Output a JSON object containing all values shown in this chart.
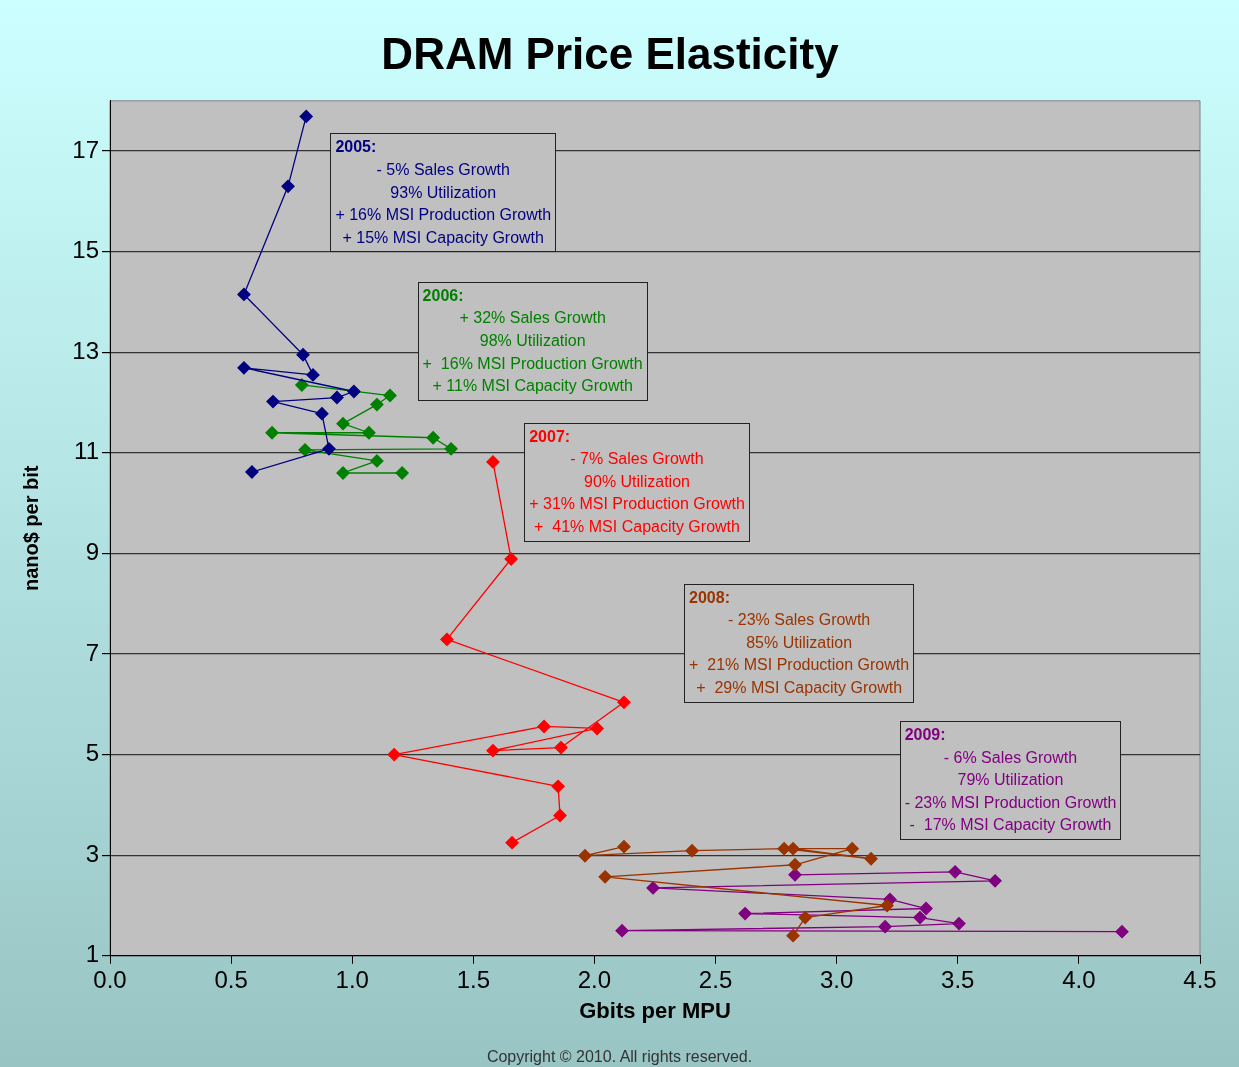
{
  "chart_data": {
    "type": "line",
    "title": "DRAM Price Elasticity",
    "xlabel": "Gbits per MPU",
    "ylabel": "nano$ per bit",
    "xlim": [
      0,
      4.5
    ],
    "xticks": [
      {
        "value": 0,
        "label": "0.0"
      },
      {
        "value": 0.5,
        "label": "0.5"
      },
      {
        "value": 1,
        "label": "1.0"
      },
      {
        "value": 1.5,
        "label": "1.5"
      },
      {
        "value": 2,
        "label": "2.0"
      },
      {
        "value": 2.5,
        "label": "2.5"
      },
      {
        "value": 3,
        "label": "3.0"
      },
      {
        "value": 3.5,
        "label": "3.5"
      },
      {
        "value": 4,
        "label": "4.0"
      },
      {
        "value": 4.5,
        "label": "4.5"
      }
    ],
    "ylim": [
      1,
      18
    ],
    "yticks": [
      1,
      3,
      5,
      7,
      9,
      11,
      13,
      15,
      17
    ],
    "grid": "y",
    "legend": false,
    "marker": "diamond",
    "line_style": "solid",
    "series": [
      {
        "color": "#000080",
        "x": [
          0.81,
          0.735,
          0.553,
          0.797,
          0.838,
          0.553,
          1.007,
          0.937,
          0.673,
          0.875,
          0.904,
          0.586
        ],
        "values": [
          17.69,
          16.3,
          14.15,
          12.95,
          12.55,
          12.69,
          12.22,
          12.1,
          12.02,
          11.78,
          11.08,
          10.62
        ]
      },
      {
        "color": "#008000",
        "x": [
          0.792,
          1.156,
          1.102,
          0.962,
          1.069,
          0.669,
          1.334,
          1.408,
          0.805,
          1.102,
          0.962,
          1.206
        ],
        "values": [
          12.35,
          12.14,
          11.96,
          11.58,
          11.4,
          11.4,
          11.3,
          11.08,
          11.06,
          10.84,
          10.6,
          10.6
        ]
      },
      {
        "color": "#ff0000",
        "x": [
          1.581,
          1.656,
          1.391,
          2.122,
          1.862,
          1.581,
          2.011,
          1.792,
          1.173,
          1.85,
          1.858,
          1.66
        ],
        "values": [
          10.82,
          8.89,
          7.29,
          6.04,
          5.14,
          5.08,
          5.52,
          5.56,
          5.0,
          4.37,
          3.79,
          3.25
        ]
      },
      {
        "color": "#993300",
        "x": [
          2.122,
          1.961,
          2.403,
          2.783,
          3.142,
          2.82,
          3.064,
          2.828,
          2.044,
          3.208,
          2.87,
          2.82
        ],
        "values": [
          3.17,
          2.99,
          3.09,
          3.13,
          2.93,
          3.13,
          3.13,
          2.81,
          2.57,
          2.0,
          1.76,
          1.4
        ]
      },
      {
        "color": "#800080",
        "x": [
          2.828,
          3.489,
          3.654,
          2.242,
          3.22,
          3.369,
          2.622,
          3.344,
          3.505,
          3.2,
          2.114,
          4.178
        ],
        "values": [
          2.61,
          2.67,
          2.49,
          2.35,
          2.12,
          1.94,
          1.84,
          1.76,
          1.64,
          1.58,
          1.5,
          1.48
        ]
      }
    ],
    "annotations": [
      "2005:\n- 5% Sales Growth\n93% Utilization\n+ 16% MSI Production Growth\n+ 15% MSI Capacity Growth",
      "2006:\n+ 32% Sales Growth\n98% Utilization\n+  16% MSI Production Growth\n+ 11% MSI Capacity Growth",
      "2007:\n- 7% Sales Growth\n90% Utilization\n+ 31% MSI Production Growth\n+  41% MSI Capacity Growth",
      "2008:\n- 23% Sales Growth\n85% Utilization\n+  21% MSI Production Growth\n+  29% MSI Capacity Growth",
      "2009:\n- 6% Sales Growth\n79% Utilization\n- 23% MSI Production Growth\n-  17% MSI Capacity Growth",
      "Copyright © 2010. All rights reserved."
    ]
  }
}
